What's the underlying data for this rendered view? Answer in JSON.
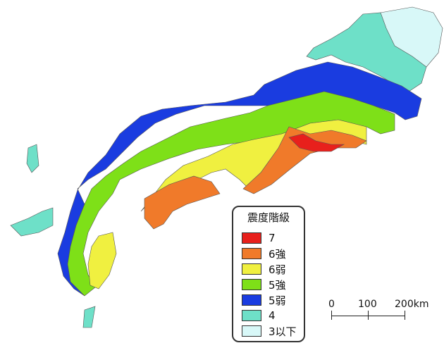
{
  "legend": {
    "title": "震度階級",
    "items": [
      {
        "label": "7",
        "color": "#e8201c"
      },
      {
        "label": "6強",
        "color": "#f07a2a"
      },
      {
        "label": "6弱",
        "color": "#f0f040"
      },
      {
        "label": "5強",
        "color": "#7ee018"
      },
      {
        "label": "5弱",
        "color": "#1a3ce0"
      },
      {
        "label": "4",
        "color": "#6ee0c8"
      },
      {
        "label": "3以下",
        "color": "#d8f8f8"
      }
    ]
  },
  "scale_bar": {
    "labels": [
      "0",
      "100",
      "200km"
    ]
  }
}
